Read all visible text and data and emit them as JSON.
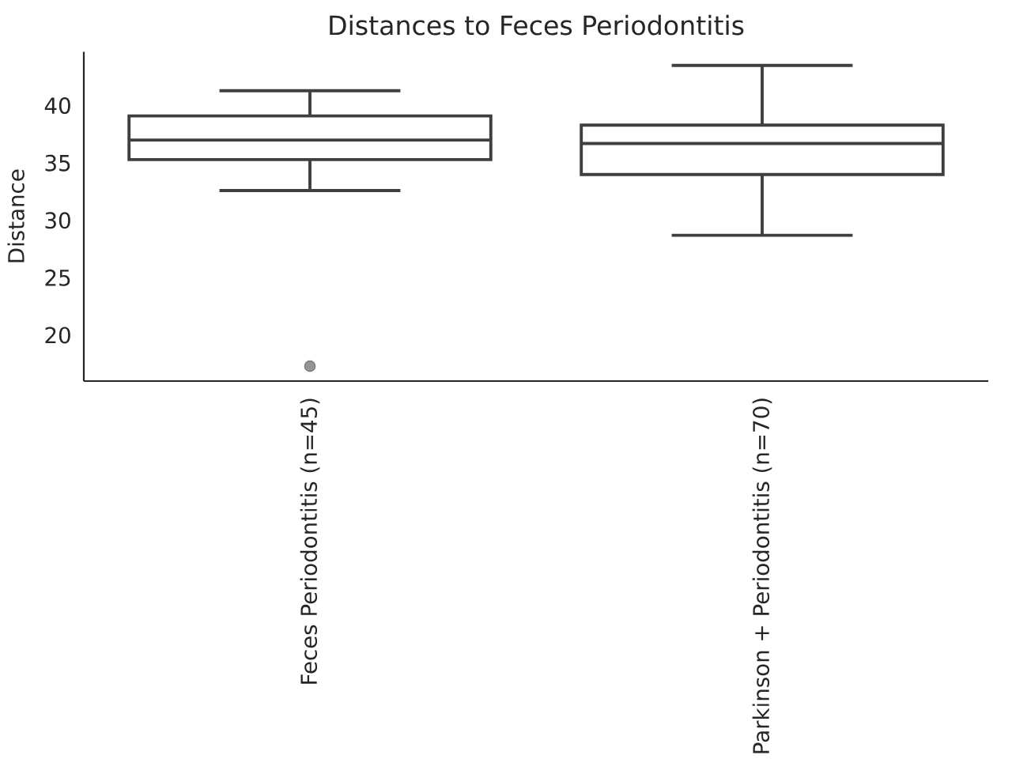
{
  "chart_data": {
    "type": "box",
    "title": "Distances to Feces Periodontitis",
    "ylabel": "Distance",
    "categories": [
      "Feces Periodontitis (n=45)",
      "Parkinson + Periodontitis (n=70)"
    ],
    "series": [
      {
        "color": "#3f3f3f",
        "boxes": [
          {
            "low": 32.6,
            "q1": 35.3,
            "median": 37.0,
            "q3": 39.1,
            "high": 41.3,
            "outliers": [
              17.3
            ]
          },
          {
            "low": 28.7,
            "q1": 34.0,
            "median": 36.7,
            "q3": 38.3,
            "high": 43.5
          }
        ]
      }
    ],
    "ylim": [
      16,
      44.7
    ],
    "yticks": [
      20,
      25,
      30,
      35,
      40
    ]
  }
}
